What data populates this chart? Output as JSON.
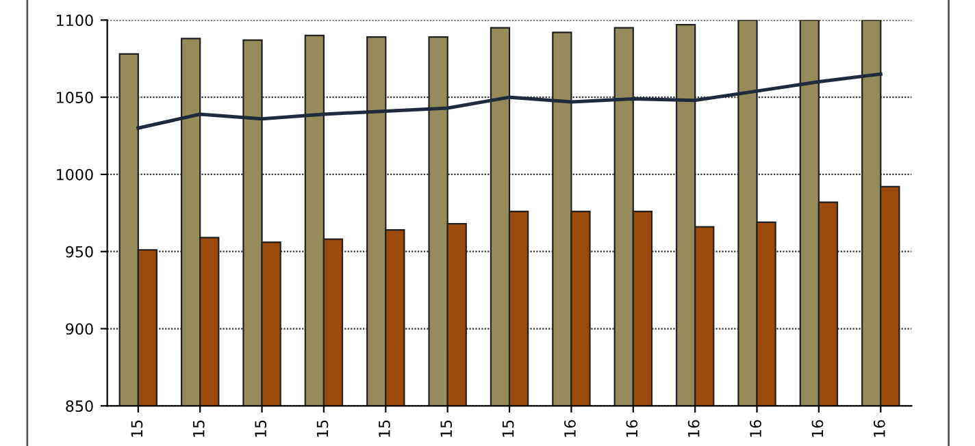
{
  "chart_data": {
    "type": "bar",
    "categories": [
      "15",
      "15",
      "15",
      "15",
      "15",
      "15",
      "15",
      "16",
      "16",
      "16",
      "16",
      "16",
      "16"
    ],
    "series": [
      {
        "color": "#958b5b",
        "values": [
          1078,
          1088,
          1087,
          1090,
          1089,
          1089,
          1095,
          1092,
          1095,
          1097,
          1100,
          1100,
          1100
        ]
      },
      {
        "color": "#9c4a0c",
        "values": [
          951,
          959,
          956,
          958,
          964,
          968,
          976,
          976,
          976,
          966,
          969,
          982,
          992
        ]
      },
      {
        "type": "line",
        "color": "#1f2a3c",
        "values": [
          1030,
          1039,
          1036,
          1039,
          1041,
          1043,
          1050,
          1047,
          1049,
          1048,
          1054,
          1060,
          1065
        ]
      }
    ],
    "ylim": [
      850,
      1100
    ],
    "yticks": [
      850,
      900,
      950,
      1000,
      1050,
      1100
    ],
    "grid": "y",
    "legend": false,
    "marker": "none",
    "line_style": "solid"
  }
}
